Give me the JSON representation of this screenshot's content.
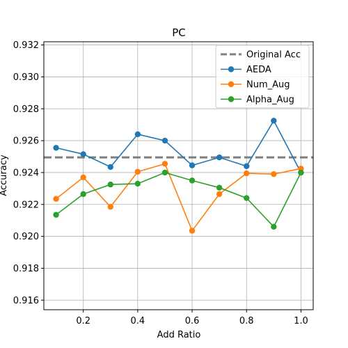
{
  "chart_data": {
    "type": "line",
    "title": "PC",
    "xlabel": "Add Ratio",
    "ylabel": "Accuracy",
    "xlim": [
      0.055,
      1.045
    ],
    "ylim": [
      0.9154,
      0.9322
    ],
    "xticks": [
      0.2,
      0.4,
      0.6,
      0.8,
      1.0
    ],
    "xtick_labels": [
      "0.2",
      "0.4",
      "0.6",
      "0.8",
      "1.0"
    ],
    "yticks": [
      0.916,
      0.918,
      0.92,
      0.922,
      0.924,
      0.926,
      0.928,
      0.93,
      0.932
    ],
    "ytick_labels": [
      "0.916",
      "0.918",
      "0.920",
      "0.922",
      "0.924",
      "0.926",
      "0.928",
      "0.930",
      "0.932"
    ],
    "grid": true,
    "legend_position": "top-right",
    "reference_line": {
      "name": "Original Acc",
      "value": 0.92495,
      "color": "#7f7f7f",
      "style": "dashed"
    },
    "x": [
      0.1,
      0.2,
      0.3,
      0.4,
      0.5,
      0.6,
      0.7,
      0.8,
      0.9,
      1.0
    ],
    "series": [
      {
        "name": "AEDA",
        "color": "#1f77b4",
        "values": [
          0.92555,
          0.92515,
          0.92435,
          0.9264,
          0.926,
          0.92445,
          0.92495,
          0.9244,
          0.92725,
          0.924
        ]
      },
      {
        "name": "Num_Aug",
        "color": "#ff7f0e",
        "values": [
          0.92235,
          0.9237,
          0.92185,
          0.92405,
          0.92455,
          0.92035,
          0.92265,
          0.92395,
          0.9239,
          0.92425
        ]
      },
      {
        "name": "Alpha_Aug",
        "color": "#2ca02c",
        "values": [
          0.92135,
          0.92265,
          0.92325,
          0.9233,
          0.924,
          0.9235,
          0.92305,
          0.9224,
          0.9206,
          0.924
        ]
      }
    ]
  }
}
